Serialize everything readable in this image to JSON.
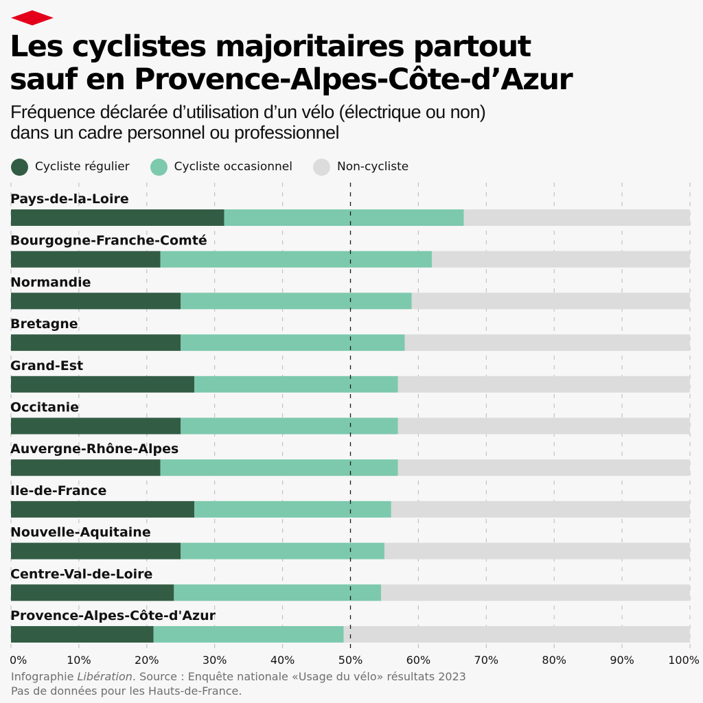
{
  "brand": {
    "logo_icon": "red-diamond-logo",
    "logo_color": "#e4001b"
  },
  "header": {
    "title_line1": "Les cyclistes majoritaires partout",
    "title_line2": "sauf en Provence-Alpes-Côte-d’Azur",
    "subtitle_line1": "Fréquence déclarée d’utilisation d’un vélo (électrique ou non)",
    "subtitle_line2": "dans un cadre personnel ou professionnel"
  },
  "legend": [
    {
      "label": "Cycliste régulier",
      "color": "#335c45"
    },
    {
      "label": "Cycliste occasionnel",
      "color": "#7dc9ae"
    },
    {
      "label": "Non-cycliste",
      "color": "#dcdcdc"
    }
  ],
  "footer": {
    "credit_prefix": "Infographie ",
    "credit_brand": "Libération",
    "credit_suffix": ". Source : Enquête nationale «Usage du vélo» résultats 2023",
    "note": "Pas de données pour les Hauts-de-France."
  },
  "chart_data": {
    "type": "bar",
    "orientation": "horizontal",
    "stacked": true,
    "title": "Les cyclistes majoritaires partout sauf en Provence-Alpes-Côte-d’Azur",
    "subtitle": "Fréquence déclarée d’utilisation d’un vélo (électrique ou non) dans un cadre personnel ou professionnel",
    "xlabel": "",
    "ylabel": "",
    "xlim": [
      0,
      100
    ],
    "x_ticks": [
      0,
      10,
      20,
      30,
      40,
      50,
      60,
      70,
      80,
      90,
      100
    ],
    "x_tick_labels": [
      "0%",
      "10%",
      "20%",
      "30%",
      "40%",
      "50%",
      "60%",
      "70%",
      "80%",
      "90%",
      "100%"
    ],
    "grid": true,
    "reference_line": 50,
    "legend_position": "top-left",
    "categories": [
      "Pays-de-la-Loire",
      "Bourgogne-Franche-Comté",
      "Normandie",
      "Bretagne",
      "Grand-Est",
      "Occitanie",
      "Auvergne-Rhône-Alpes",
      "Ile-de-France",
      "Nouvelle-Aquitaine",
      "Centre-Val-de-Loire",
      "Provence-Alpes-Côte-d'Azur"
    ],
    "series": [
      {
        "name": "Cycliste régulier",
        "color": "#335c45",
        "values": [
          31.4,
          22,
          25,
          25,
          27,
          25,
          22,
          27,
          25,
          24,
          21
        ]
      },
      {
        "name": "Cycliste occasionnel",
        "color": "#7dc9ae",
        "values": [
          35.3,
          40,
          34,
          33,
          30,
          32,
          35,
          29,
          30,
          30.5,
          28
        ]
      },
      {
        "name": "Non-cycliste",
        "color": "#dcdcdc",
        "values": [
          33.3,
          38,
          41,
          42,
          43,
          43,
          43,
          44,
          45,
          45.5,
          51
        ]
      }
    ]
  }
}
